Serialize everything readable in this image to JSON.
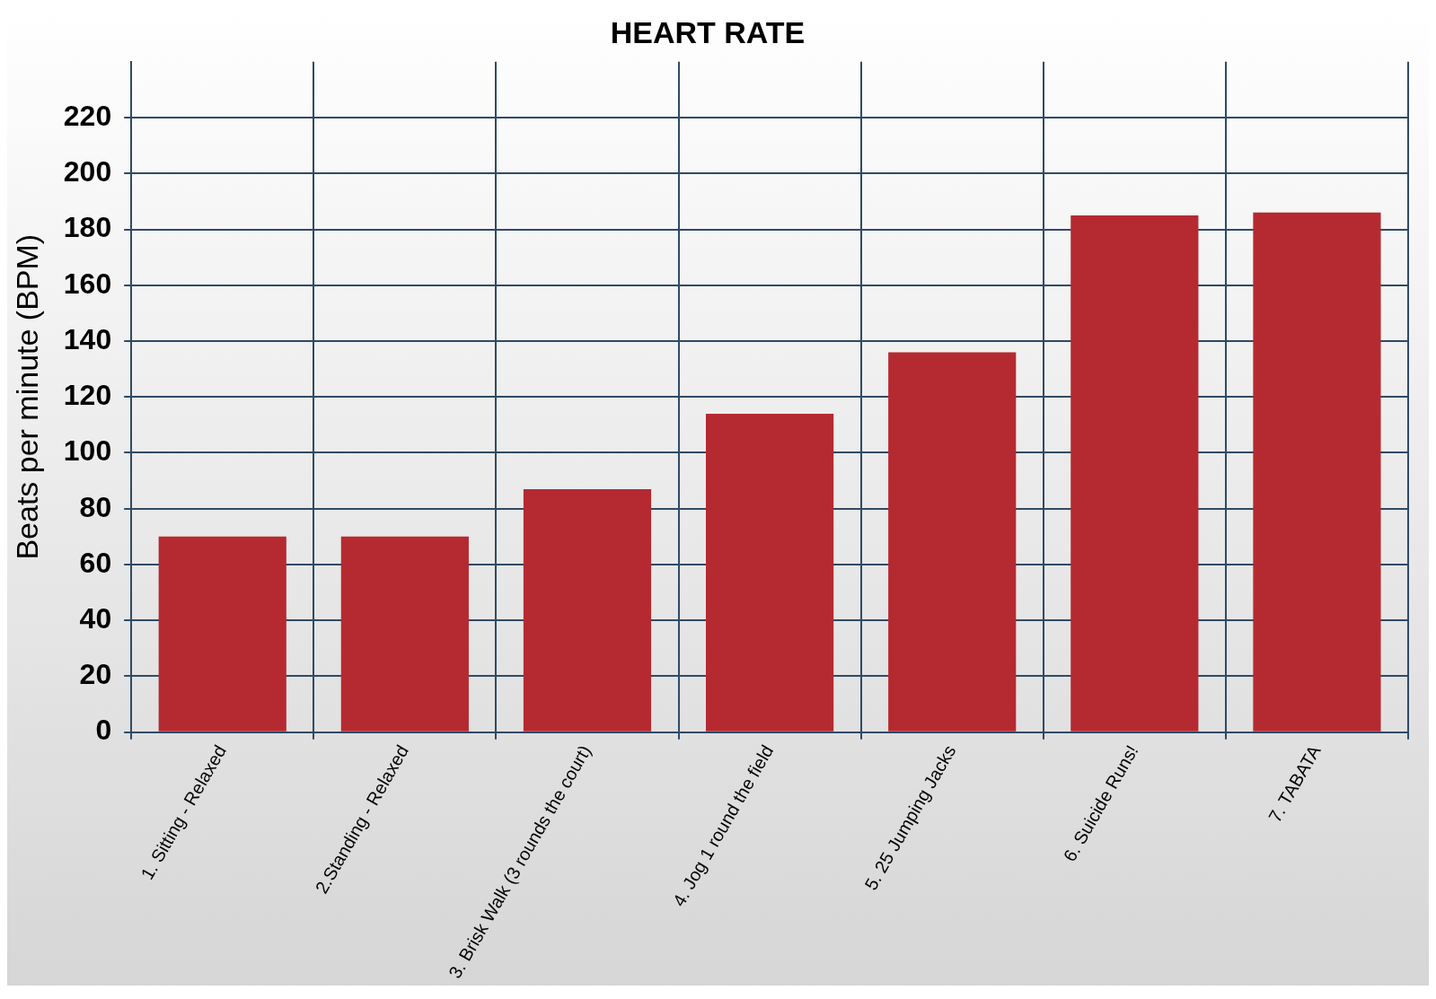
{
  "chart_data": {
    "type": "bar",
    "title": "HEART RATE",
    "ylabel": "Beats per minute (BPM)",
    "categories": [
      "1. Sitting - Relaxed",
      "2.Standing - Relaxed",
      "3. Brisk Walk (3 rounds the court)",
      "4. Jog 1 round the field",
      "5. 25 Jumping Jacks",
      "6. Suicide Runs!",
      "7. TABATA"
    ],
    "values": [
      70,
      70,
      87,
      114,
      136,
      185,
      186
    ],
    "color": "#b52a30",
    "ylim": [
      0,
      240
    ],
    "yticks": [
      0,
      20,
      40,
      60,
      80,
      100,
      120,
      140,
      160,
      180,
      200,
      220
    ],
    "grid": true
  }
}
